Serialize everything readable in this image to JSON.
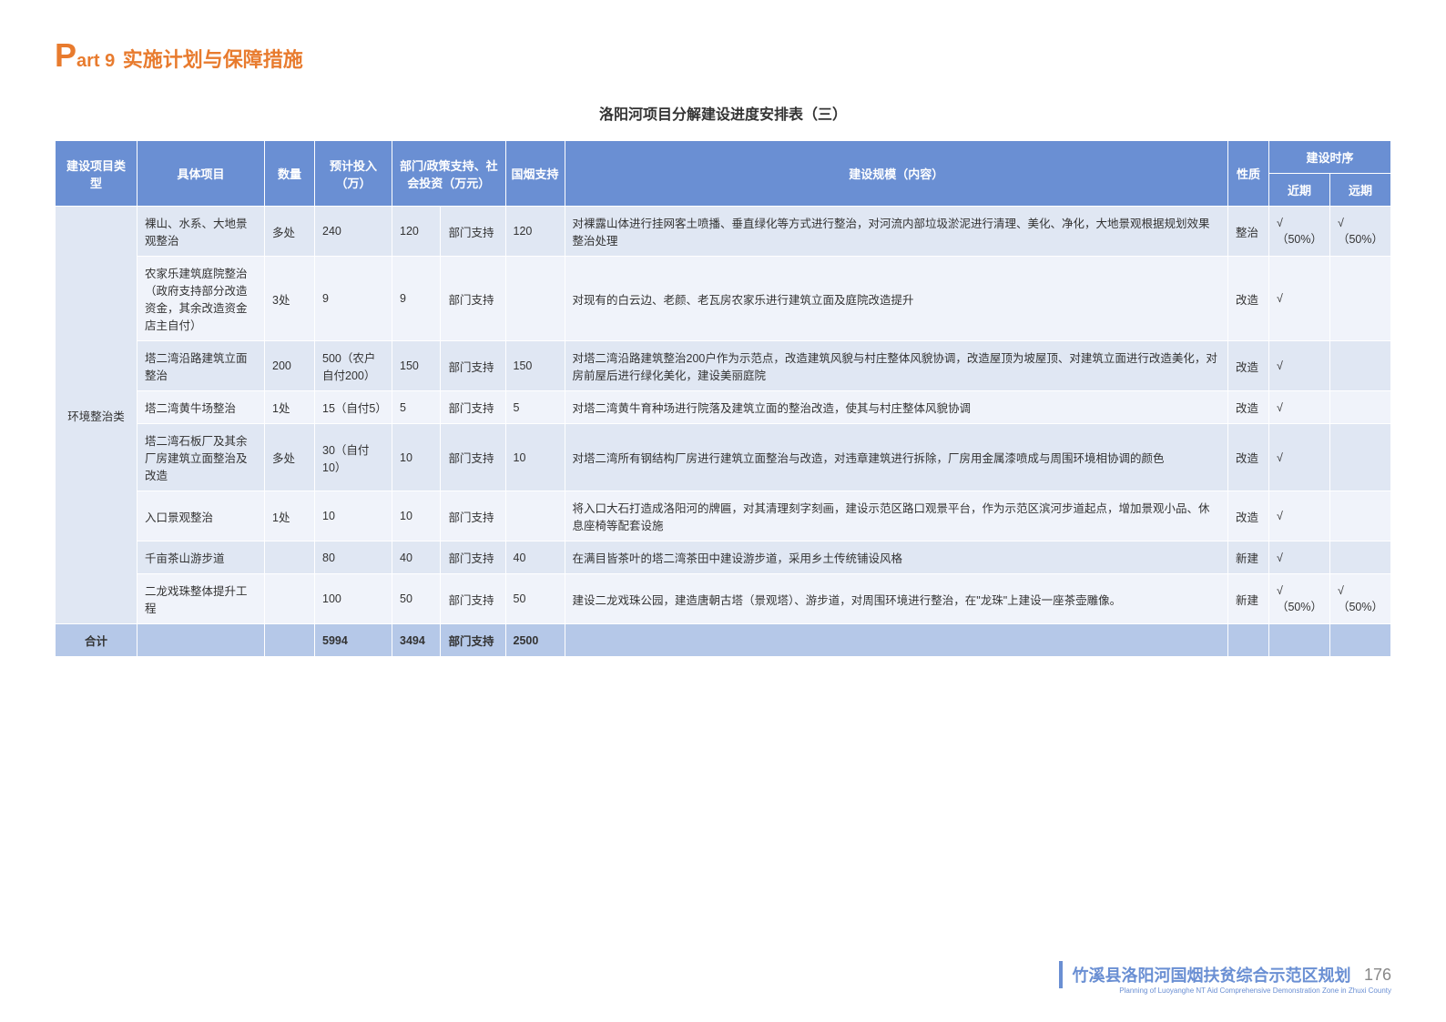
{
  "header": {
    "big_p": "P",
    "part": "art 9",
    "title": "实施计划与保障措施"
  },
  "table_title": "洛阳河项目分解建设进度安排表（三）",
  "columns": {
    "cat": "建设项目类型",
    "proj": "具体项目",
    "qty": "数量",
    "inv": "预计投入（万）",
    "social": "部门/政策支持、社会投资（万元）",
    "smoke": "国烟支持",
    "content": "建设规模（内容）",
    "nature": "性质",
    "schedule": "建设时序",
    "near": "近期",
    "far": "远期"
  },
  "category": "环境整治类",
  "rows": [
    {
      "proj": "裸山、水系、大地景观整治",
      "qty": "多处",
      "inv": "240",
      "social": "120",
      "dept": "部门支持",
      "smoke": "120",
      "content": "对裸露山体进行挂网客土喷播、垂直绿化等方式进行整治，对河流内部垃圾淤泥进行清理、美化、净化，大地景观根据规划效果整治处理",
      "nature": "整治",
      "near": "√（50%）",
      "far": "√（50%）"
    },
    {
      "proj": "农家乐建筑庭院整治（政府支持部分改造资金，其余改造资金店主自付）",
      "qty": "3处",
      "inv": "9",
      "social": "9",
      "dept": "部门支持",
      "smoke": "",
      "content": "对现有的白云边、老颜、老瓦房农家乐进行建筑立面及庭院改造提升",
      "nature": "改造",
      "near": "√",
      "far": ""
    },
    {
      "proj": "塔二湾沿路建筑立面整治",
      "qty": "200",
      "inv": "500（农户自付200）",
      "social": "150",
      "dept": "部门支持",
      "smoke": "150",
      "content": "对塔二湾沿路建筑整治200户作为示范点，改造建筑风貌与村庄整体风貌协调，改造屋顶为坡屋顶、对建筑立面进行改造美化，对房前屋后进行绿化美化，建设美丽庭院",
      "nature": "改造",
      "near": "√",
      "far": ""
    },
    {
      "proj": "塔二湾黄牛场整治",
      "qty": "1处",
      "inv": "15（自付5）",
      "social": "5",
      "dept": "部门支持",
      "smoke": "5",
      "content": "对塔二湾黄牛育种场进行院落及建筑立面的整治改造，使其与村庄整体风貌协调",
      "nature": "改造",
      "near": "√",
      "far": ""
    },
    {
      "proj": "塔二湾石板厂及其余厂房建筑立面整治及改造",
      "qty": "多处",
      "inv": "30（自付10）",
      "social": "10",
      "dept": "部门支持",
      "smoke": "10",
      "content": "对塔二湾所有钢结构厂房进行建筑立面整治与改造，对违章建筑进行拆除，厂房用金属漆喷成与周围环境相协调的颜色",
      "nature": "改造",
      "near": "√",
      "far": ""
    },
    {
      "proj": "入口景观整治",
      "qty": "1处",
      "inv": "10",
      "social": "10",
      "dept": "部门支持",
      "smoke": "",
      "content": "将入口大石打造成洛阳河的牌匾，对其清理刻字刻画，建设示范区路口观景平台，作为示范区滨河步道起点，增加景观小品、休息座椅等配套设施",
      "nature": "改造",
      "near": "√",
      "far": ""
    },
    {
      "proj": "千亩茶山游步道",
      "qty": "",
      "inv": "80",
      "social": "40",
      "dept": "部门支持",
      "smoke": "40",
      "content": "在满目皆茶叶的塔二湾茶田中建设游步道，采用乡土传统铺设风格",
      "nature": "新建",
      "near": "√",
      "far": ""
    },
    {
      "proj": "二龙戏珠整体提升工程",
      "qty": "",
      "inv": "100",
      "social": "50",
      "dept": "部门支持",
      "smoke": "50",
      "content": "建设二龙戏珠公园，建造唐朝古塔（景观塔）、游步道，对周围环境进行整治，在\"龙珠\"上建设一座茶壶雕像。",
      "nature": "新建",
      "near": "√（50%）",
      "far": "√（50%）"
    }
  ],
  "total": {
    "label": "合计",
    "inv": "5994",
    "social": "3494",
    "dept": "部门支持",
    "smoke": "2500"
  },
  "footer": {
    "cn": "竹溪县洛阳河国烟扶贫综合示范区规划",
    "en": "Planning of Luoyanghe NT Aid Comprehensive Demonstration Zone in Zhuxi County",
    "page": "176"
  }
}
